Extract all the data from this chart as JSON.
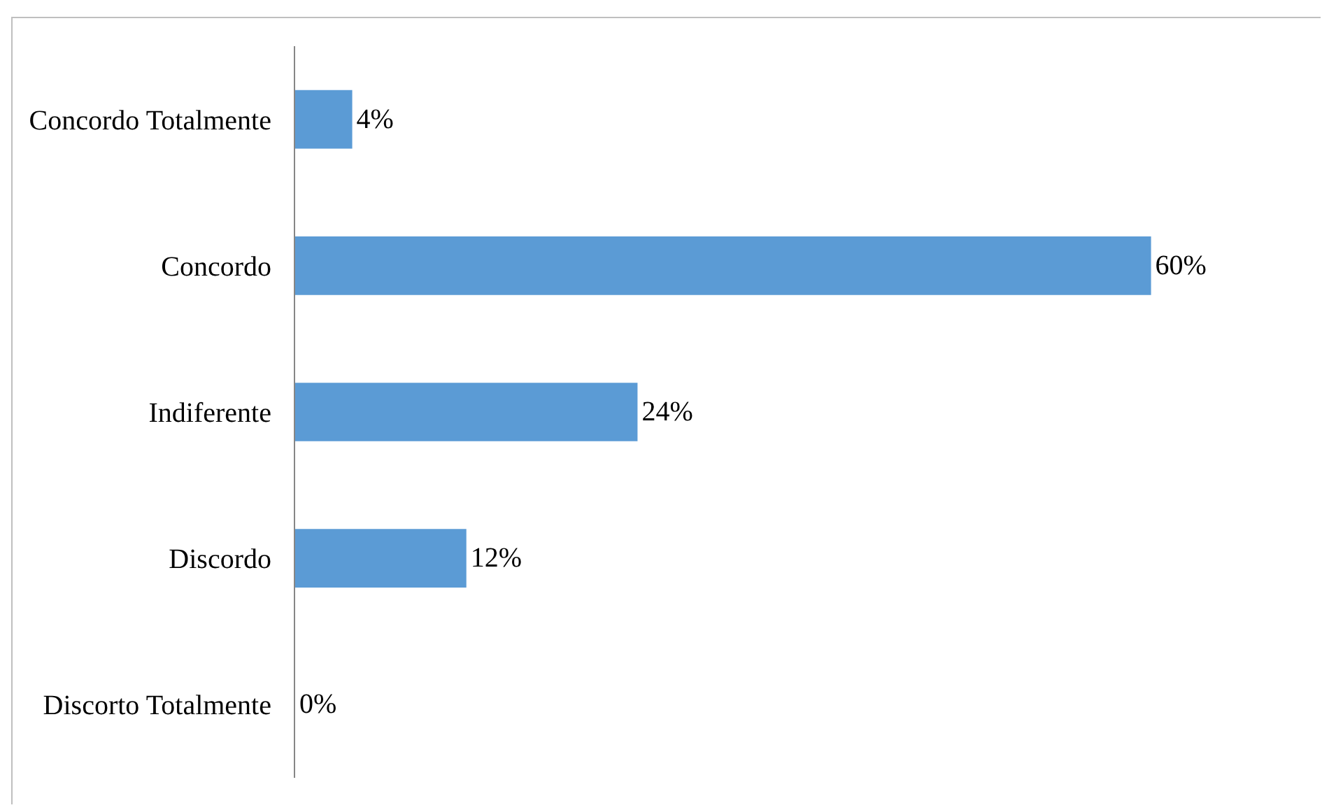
{
  "chart_data": {
    "type": "bar",
    "orientation": "horizontal",
    "categories": [
      "Concordo Totalmente",
      "Concordo",
      "Indiferente",
      "Discordo",
      "Discorto Totalmente"
    ],
    "values": [
      4,
      60,
      24,
      12,
      0
    ],
    "value_labels": [
      "4%",
      "60%",
      "24%",
      "12%",
      "0%"
    ],
    "color": "#5b9bd5"
  }
}
